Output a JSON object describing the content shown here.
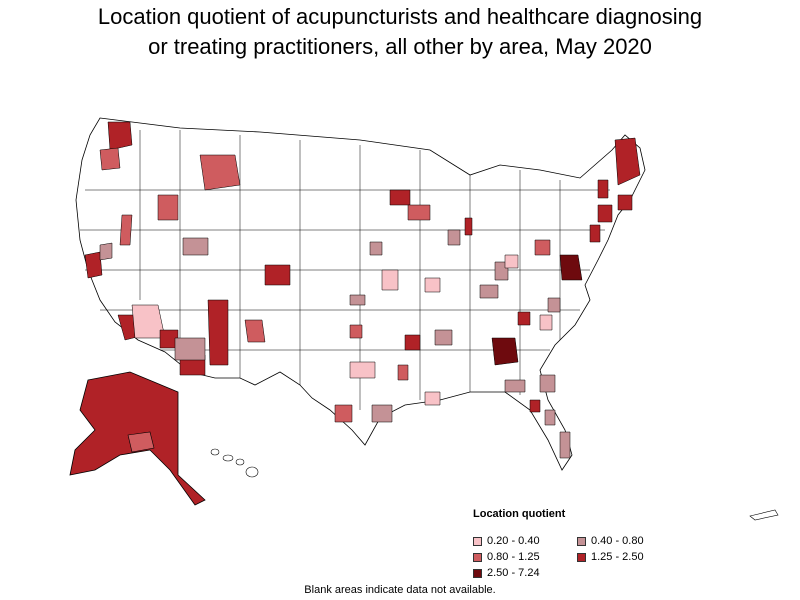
{
  "title_line1": "Location quotient of acupuncturists and healthcare diagnosing",
  "title_line2": "or treating practitioners, all other by area, May 2020",
  "legend": {
    "title": "Location quotient",
    "items": [
      {
        "label": "0.20 - 0.40",
        "color": "#f8c2c7"
      },
      {
        "label": "0.40 - 0.80",
        "color": "#c49296"
      },
      {
        "label": "0.80 - 1.25",
        "color": "#cf5c5f"
      },
      {
        "label": "1.25 - 2.50",
        "color": "#b02227"
      },
      {
        "label": "2.50 - 7.24",
        "color": "#6e0a0e"
      }
    ]
  },
  "footnote": "Blank areas indicate data not available.",
  "colors": {
    "outline": "#000000",
    "blank": "#ffffff"
  }
}
